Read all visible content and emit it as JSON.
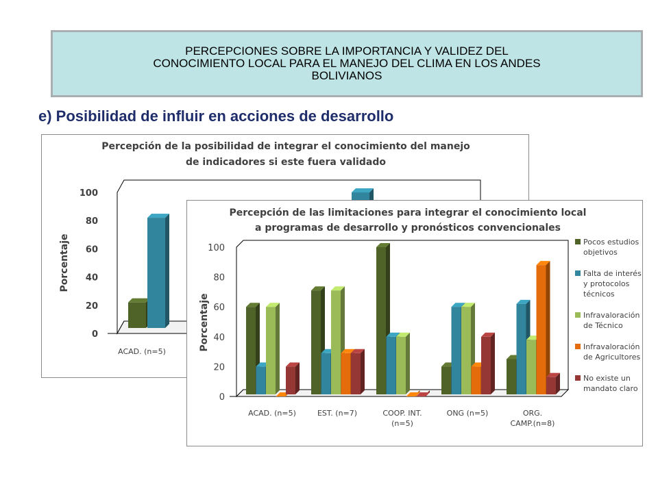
{
  "banner": {
    "title": "PERCEPCIONES SOBRE LA IMPORTANCIA Y VALIDEZ DEL\nCONOCIMIENTO LOCAL  PARA EL MANEJO DEL CLIMA EN LOS ANDES\nBOLIVIANOS"
  },
  "section": {
    "heading": "e) Posibilidad de influir en acciones de desarrollo"
  },
  "chart_data": [
    {
      "type": "bar",
      "title": "Percepción de la posibilidad  de integrar  el conocimiento del manejo de indicadores si este fuera validado",
      "title_lines": [
        "Percepción de la posibilidad  de integrar  el conocimiento del manejo",
        "de indicadores si este fuera validado"
      ],
      "ylabel": "Porcentaje",
      "ylim": [
        0,
        100
      ],
      "yticks": [
        0,
        20,
        40,
        60,
        80,
        100
      ],
      "categories": [
        "ACAD. (n=5)"
      ],
      "series": [
        {
          "values": [
            22
          ],
          "color": "#4f6228"
        },
        {
          "values": [
            82
          ],
          "color": "#31859c"
        }
      ],
      "partial_visible_bar": {
        "value": 100,
        "color": "#31859c"
      }
    },
    {
      "type": "bar",
      "title": "Percepción de las limitaciones para integrar el conocimiento local a programas de desarrollo y pronósticos convencionales",
      "title_lines": [
        "Percepción de las limitaciones  para integrar el conocimiento local",
        "a programas de desarrollo y pronósticos convencionales"
      ],
      "ylabel": "Porcentaje",
      "ylim": [
        0,
        100
      ],
      "yticks": [
        0,
        20,
        40,
        60,
        80,
        100
      ],
      "categories": [
        {
          "lines": [
            "ACAD. (n=5)"
          ]
        },
        {
          "lines": [
            "EST. (n=7)"
          ]
        },
        {
          "lines": [
            "COOP. INT.",
            "(n=5)"
          ]
        },
        {
          "lines": [
            "ONG (n=5)"
          ]
        },
        {
          "lines": [
            "ORG.",
            "CAMP.(n=8)"
          ]
        }
      ],
      "series": [
        {
          "name": "Pocos estudios objetivos",
          "name_lines": [
            "Pocos estudios",
            "objetivos"
          ],
          "color": "#4f6228",
          "values": [
            60,
            71,
            100,
            20,
            25
          ]
        },
        {
          "name": "Falta de interés y protocolos técnicos",
          "name_lines": [
            "Falta de interés",
            "y protocolos",
            "técnicos"
          ],
          "color": "#31859c",
          "values": [
            20,
            29,
            40,
            60,
            62
          ]
        },
        {
          "name": "Infravaloración de Técnico",
          "name_lines": [
            "Infravaloración",
            "de Técnico"
          ],
          "color": "#9bbb59",
          "values": [
            60,
            71,
            40,
            60,
            38
          ]
        },
        {
          "name": "Infravaloración de Agricultores",
          "name_lines": [
            "Infravaloración",
            "de Agricultores"
          ],
          "color": "#e46c0a",
          "values": [
            0,
            29,
            0,
            20,
            88
          ]
        },
        {
          "name": "No existe un mandato claro",
          "name_lines": [
            "No existe un",
            "mandato claro"
          ],
          "color": "#953735",
          "values": [
            20,
            29,
            0,
            40,
            13
          ]
        }
      ],
      "legend_position": "right"
    }
  ]
}
